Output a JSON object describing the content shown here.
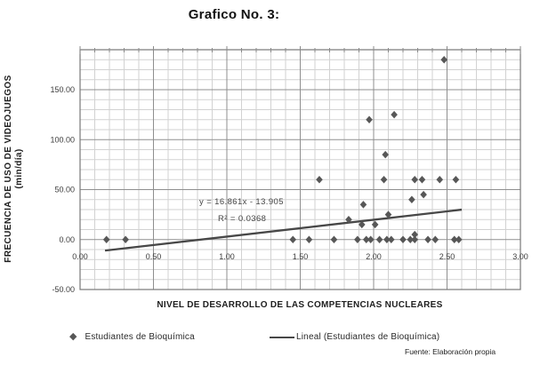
{
  "page": {
    "title": "Grafico No. 3:",
    "source_note": "Fuente: Elaboración propia"
  },
  "chart_data": {
    "type": "scatter",
    "title": "Grafico No. 3:",
    "xlabel": "NIVEL DE DESARROLLO DE LAS COMPETENCIAS NUCLEARES",
    "ylabel": "FRECUENCIA DE USO DE VIDEOJUEGOS (min/día)",
    "ylabel_line1": "FRECUENCIA DE USO DE VIDEOJUEGOS",
    "ylabel_line2": "(min/día)",
    "xlim": [
      0,
      3
    ],
    "ylim": [
      -50,
      190
    ],
    "grid": "on",
    "minor_x_step": 0.1,
    "minor_y_step": 10,
    "legend_position": "bottom",
    "x_ticks": [
      {
        "value": 0,
        "label": "0.00"
      },
      {
        "value": 0.5,
        "label": "0.50"
      },
      {
        "value": 1,
        "label": "1.00"
      },
      {
        "value": 1.5,
        "label": "1.50"
      },
      {
        "value": 2,
        "label": "2.00"
      },
      {
        "value": 2.5,
        "label": "2.50"
      },
      {
        "value": 3,
        "label": "3.00"
      }
    ],
    "y_ticks": [
      {
        "value": 150,
        "label": "150.00"
      },
      {
        "value": 100,
        "label": "100.00"
      },
      {
        "value": 50,
        "label": "50.00"
      },
      {
        "value": 0,
        "label": "0.00"
      },
      {
        "value": -50,
        "label": "-50.00"
      }
    ],
    "series": [
      {
        "name": "Estudiantes de Bioquímica",
        "type": "scatter",
        "marker": "diamond",
        "color": "#575757",
        "points": [
          [
            0.18,
            0
          ],
          [
            0.31,
            0
          ],
          [
            1.45,
            0
          ],
          [
            1.56,
            0
          ],
          [
            1.73,
            0
          ],
          [
            1.89,
            0
          ],
          [
            1.95,
            0
          ],
          [
            1.98,
            0
          ],
          [
            2.04,
            0
          ],
          [
            2.09,
            0
          ],
          [
            2.12,
            0
          ],
          [
            2.2,
            0
          ],
          [
            2.25,
            0
          ],
          [
            2.28,
            0
          ],
          [
            2.37,
            0
          ],
          [
            2.42,
            0
          ],
          [
            2.55,
            0
          ],
          [
            2.58,
            0
          ],
          [
            2.28,
            5
          ],
          [
            1.92,
            15
          ],
          [
            2.01,
            15
          ],
          [
            1.83,
            20
          ],
          [
            2.1,
            25
          ],
          [
            1.93,
            35
          ],
          [
            2.26,
            40
          ],
          [
            2.34,
            45
          ],
          [
            1.63,
            60
          ],
          [
            2.07,
            60
          ],
          [
            2.28,
            60
          ],
          [
            2.33,
            60
          ],
          [
            2.45,
            60
          ],
          [
            2.56,
            60
          ],
          [
            2.08,
            85
          ],
          [
            1.97,
            120
          ],
          [
            2.14,
            125
          ],
          [
            2.48,
            180
          ]
        ]
      },
      {
        "name": "Lineal (Estudiantes de Bioquímica)",
        "type": "trendline",
        "color": "#474747",
        "slope": 16.861,
        "intercept": -13.905,
        "x_range": [
          0.17,
          2.6
        ],
        "equation_label": "y = 16.861x - 13.905",
        "r2_label": "R² = 0.0368"
      }
    ]
  }
}
